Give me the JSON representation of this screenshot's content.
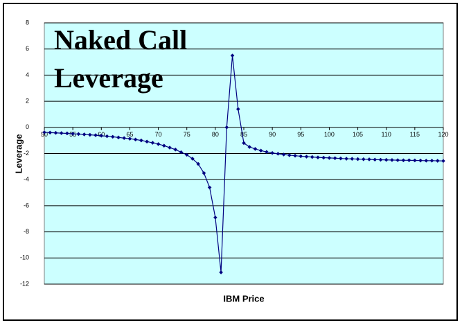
{
  "chart_data": {
    "type": "line",
    "title_lines": [
      "Naked Call",
      "Leverage"
    ],
    "xlabel": "IBM Price",
    "ylabel": "Leverage",
    "x": [
      50,
      51,
      52,
      53,
      54,
      55,
      56,
      57,
      58,
      59,
      60,
      61,
      62,
      63,
      64,
      65,
      66,
      67,
      68,
      69,
      70,
      71,
      72,
      73,
      74,
      75,
      76,
      77,
      78,
      79,
      80,
      81,
      82,
      83,
      84,
      85,
      86,
      87,
      88,
      89,
      90,
      91,
      92,
      93,
      94,
      95,
      96,
      97,
      98,
      99,
      100,
      101,
      102,
      103,
      104,
      105,
      106,
      107,
      108,
      109,
      110,
      111,
      112,
      113,
      114,
      115,
      116,
      117,
      118,
      119,
      120
    ],
    "values": [
      -0.38,
      -0.4,
      -0.42,
      -0.44,
      -0.46,
      -0.49,
      -0.51,
      -0.54,
      -0.57,
      -0.6,
      -0.64,
      -0.68,
      -0.72,
      -0.77,
      -0.82,
      -0.87,
      -0.93,
      -1.0,
      -1.09,
      -1.18,
      -1.28,
      -1.4,
      -1.55,
      -1.7,
      -1.9,
      -2.1,
      -2.4,
      -2.8,
      -3.5,
      -4.6,
      -6.9,
      -11.1,
      0,
      5.5,
      1.4,
      -1.2,
      -1.5,
      -1.65,
      -1.78,
      -1.88,
      -1.96,
      -2.02,
      -2.08,
      -2.13,
      -2.17,
      -2.21,
      -2.24,
      -2.27,
      -2.3,
      -2.32,
      -2.34,
      -2.36,
      -2.38,
      -2.4,
      -2.41,
      -2.43,
      -2.44,
      -2.45,
      -2.47,
      -2.48,
      -2.49,
      -2.5,
      -2.51,
      -2.52,
      -2.52,
      -2.53,
      -2.54,
      -2.55,
      -2.55,
      -2.56,
      -2.57
    ],
    "color": "#000080",
    "xlim": [
      50,
      120
    ],
    "xticks": [
      50,
      55,
      60,
      65,
      70,
      75,
      80,
      85,
      90,
      95,
      100,
      105,
      110,
      115,
      120
    ],
    "ylim": [
      -12,
      8
    ],
    "yticks": [
      -12,
      -10,
      -8,
      -6,
      -4,
      -2,
      0,
      2,
      4,
      6,
      8
    ],
    "grid": true,
    "plot_background": "#ccffff",
    "title_color": "#ff0000"
  }
}
